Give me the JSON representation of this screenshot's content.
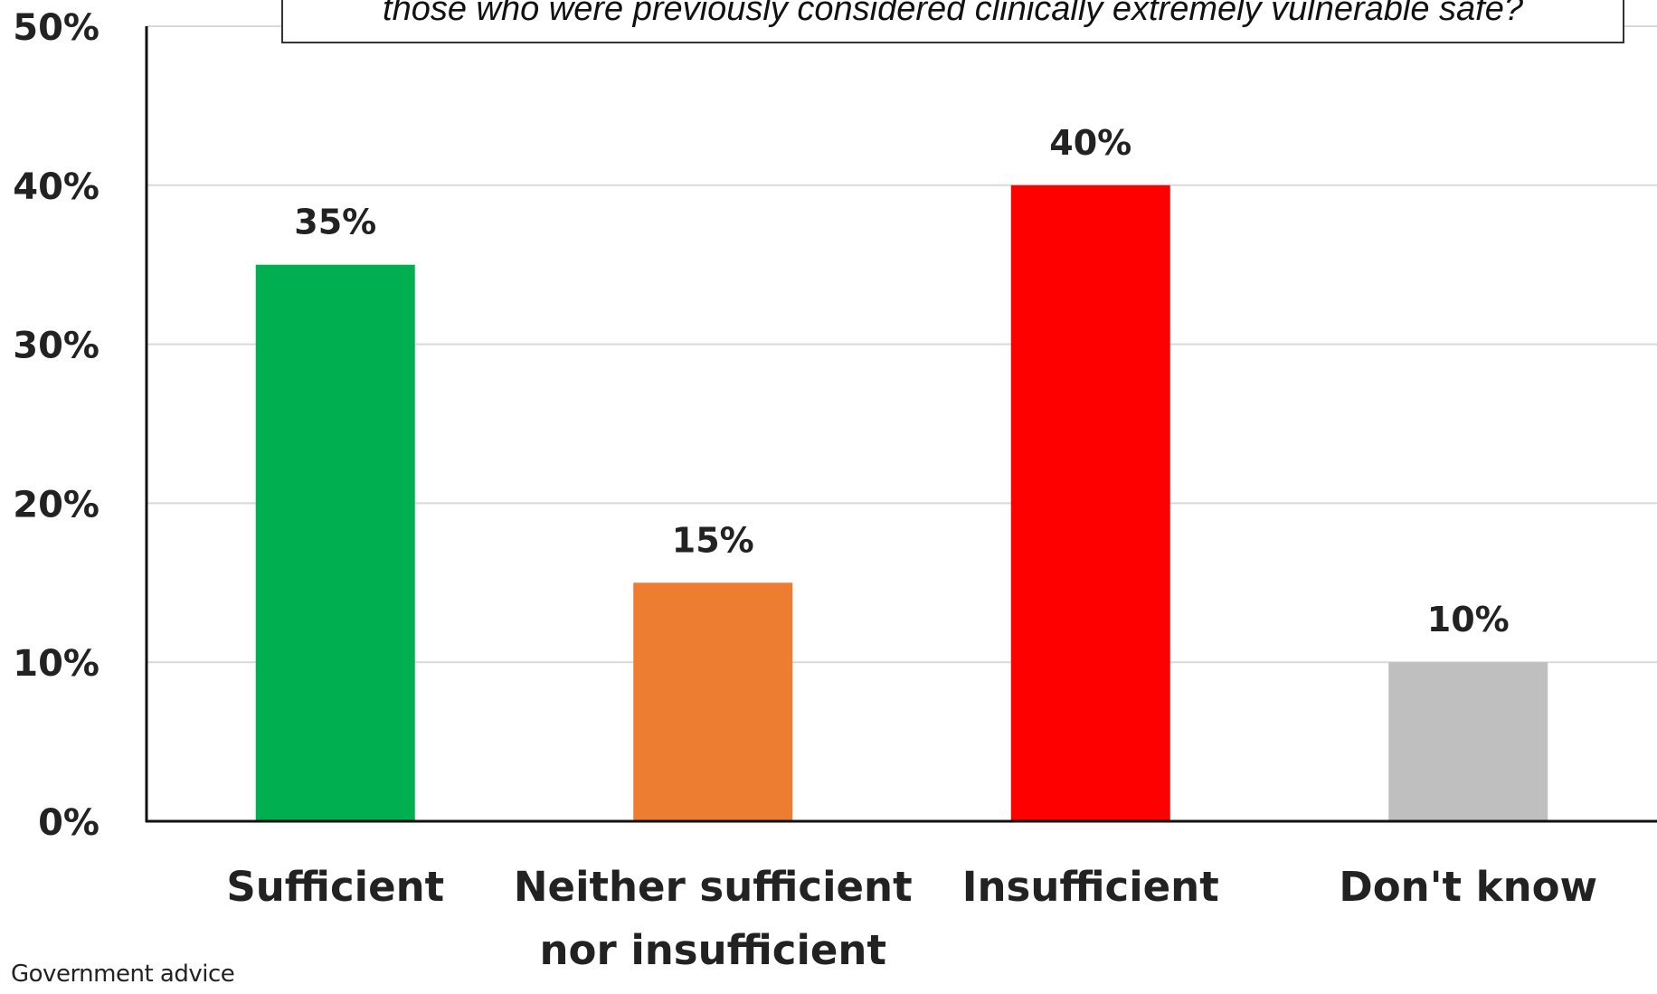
{
  "chart_data": {
    "type": "bar",
    "title": "those who were previously considered clinically extremely vulnerable safe?",
    "categories": [
      [
        "Sufficient"
      ],
      [
        "Neither sufficient",
        "nor insufficient"
      ],
      [
        "Insufficient"
      ],
      [
        "Don't know"
      ]
    ],
    "values": [
      35,
      15,
      40,
      10
    ],
    "data_labels": [
      "35%",
      "15%",
      "40%",
      "10%"
    ],
    "colors": [
      "#00b050",
      "#ed7d31",
      "#ff0000",
      "#bfbfbf"
    ],
    "ylim": [
      0,
      50
    ],
    "yticks": [
      0,
      10,
      20,
      30,
      40,
      50
    ],
    "ytick_labels": [
      "0%",
      "10%",
      "20%",
      "30%",
      "40%",
      "50%"
    ],
    "grid": true,
    "xlabel": "",
    "ylabel": ""
  },
  "footnote": "Government advice"
}
